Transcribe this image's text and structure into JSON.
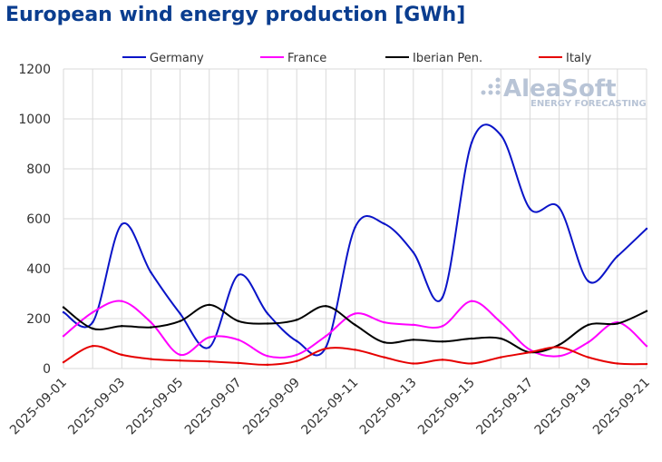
{
  "chart_data": {
    "type": "line",
    "title": "European wind energy production [GWh]",
    "xlabel": "",
    "ylabel": "",
    "ylim": [
      0,
      1200
    ],
    "yticks": [
      0,
      200,
      400,
      600,
      800,
      1000,
      1200
    ],
    "x": [
      "2025-09-01",
      "2025-09-02",
      "2025-09-03",
      "2025-09-04",
      "2025-09-05",
      "2025-09-06",
      "2025-09-07",
      "2025-09-08",
      "2025-09-09",
      "2025-09-10",
      "2025-09-11",
      "2025-09-12",
      "2025-09-13",
      "2025-09-14",
      "2025-09-15",
      "2025-09-16",
      "2025-09-17",
      "2025-09-18",
      "2025-09-19",
      "2025-09-20",
      "2025-09-21"
    ],
    "xticks": [
      "2025-09-01",
      "2025-09-03",
      "2025-09-05",
      "2025-09-07",
      "2025-09-09",
      "2025-09-11",
      "2025-09-13",
      "2025-09-15",
      "2025-09-17",
      "2025-09-19",
      "2025-09-21"
    ],
    "grid": true,
    "legend": "top",
    "series": [
      {
        "name": "Germany",
        "color": "#0a14c8",
        "values": [
          225,
          185,
          578,
          385,
          220,
          85,
          375,
          220,
          110,
          85,
          565,
          580,
          465,
          285,
          905,
          935,
          640,
          645,
          350,
          450,
          560
        ]
      },
      {
        "name": "France",
        "color": "#ff00ff",
        "values": [
          130,
          225,
          270,
          185,
          55,
          125,
          115,
          50,
          55,
          130,
          220,
          185,
          175,
          170,
          270,
          185,
          75,
          50,
          105,
          185,
          90
        ]
      },
      {
        "name": "Iberian Pen.",
        "color": "#000000",
        "values": [
          245,
          160,
          170,
          165,
          190,
          255,
          190,
          180,
          195,
          250,
          175,
          105,
          115,
          108,
          120,
          120,
          65,
          95,
          175,
          180,
          230
        ]
      },
      {
        "name": "Italy",
        "color": "#e60000",
        "values": [
          25,
          90,
          55,
          38,
          32,
          28,
          22,
          15,
          30,
          80,
          75,
          45,
          20,
          35,
          20,
          45,
          65,
          85,
          45,
          20,
          18
        ]
      }
    ]
  },
  "logo": {
    "name": "AleaSoft",
    "subtitle": "ENERGY FORECASTING"
  }
}
